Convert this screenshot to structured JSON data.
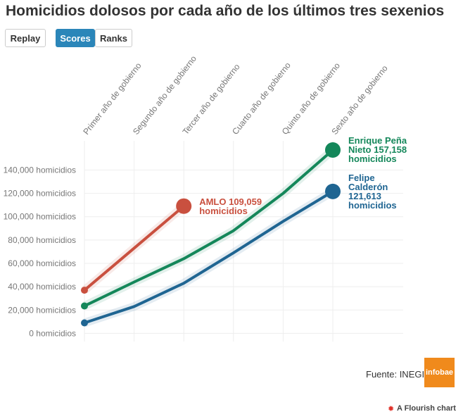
{
  "buttons": [
    "Replay",
    "Scores",
    "Ranks"
  ],
  "source": "Fuente: INEGI",
  "logo": "infobae",
  "credit": "A Flourish chart",
  "chart_data": {
    "type": "line",
    "title": "Homicidios dolosos por cada año de los últimos tres sexenios",
    "categories": [
      "Primer año de gobierno",
      "Segundo año de gobierno",
      "Tercer año de gobierno",
      "Cuarto año de gobierno",
      "Quinto año de gobierno",
      "Sexto año de gobierno"
    ],
    "series": [
      {
        "name": "AMLO",
        "color": "#c9503f",
        "values": [
          37000,
          73000,
          109059,
          null,
          null,
          null
        ],
        "value_labels": [
          null,
          null,
          "109,059 homicidios",
          null,
          null,
          null
        ]
      },
      {
        "name": "Enrique Peña Nieto",
        "color": "#14875a",
        "values": [
          23500,
          44000,
          64000,
          88000,
          120000,
          157158
        ],
        "value_labels": [
          null,
          null,
          null,
          null,
          null,
          "157,158 homicidios"
        ]
      },
      {
        "name": "Felipe Calderón",
        "color": "#1f6592",
        "values": [
          9000,
          23000,
          43000,
          69000,
          96000,
          121613
        ],
        "value_labels": [
          null,
          null,
          null,
          null,
          null,
          "121,613 homicidios"
        ]
      }
    ],
    "ylim": [
      -7000,
      165000
    ],
    "yticks": [
      {
        "value": 0,
        "label": "0 homicidios"
      },
      {
        "value": 20000,
        "label": "20,000 homicidios"
      },
      {
        "value": 40000,
        "label": "40,000 homicidios"
      },
      {
        "value": 60000,
        "label": "60,000 homicidios"
      },
      {
        "value": 80000,
        "label": "80,000 homicidios"
      },
      {
        "value": 100000,
        "label": "100,000 homicidios"
      },
      {
        "value": 120000,
        "label": "120,000 homicidios"
      },
      {
        "value": 140000,
        "label": "140,000 homicidios"
      }
    ],
    "grid": true
  }
}
